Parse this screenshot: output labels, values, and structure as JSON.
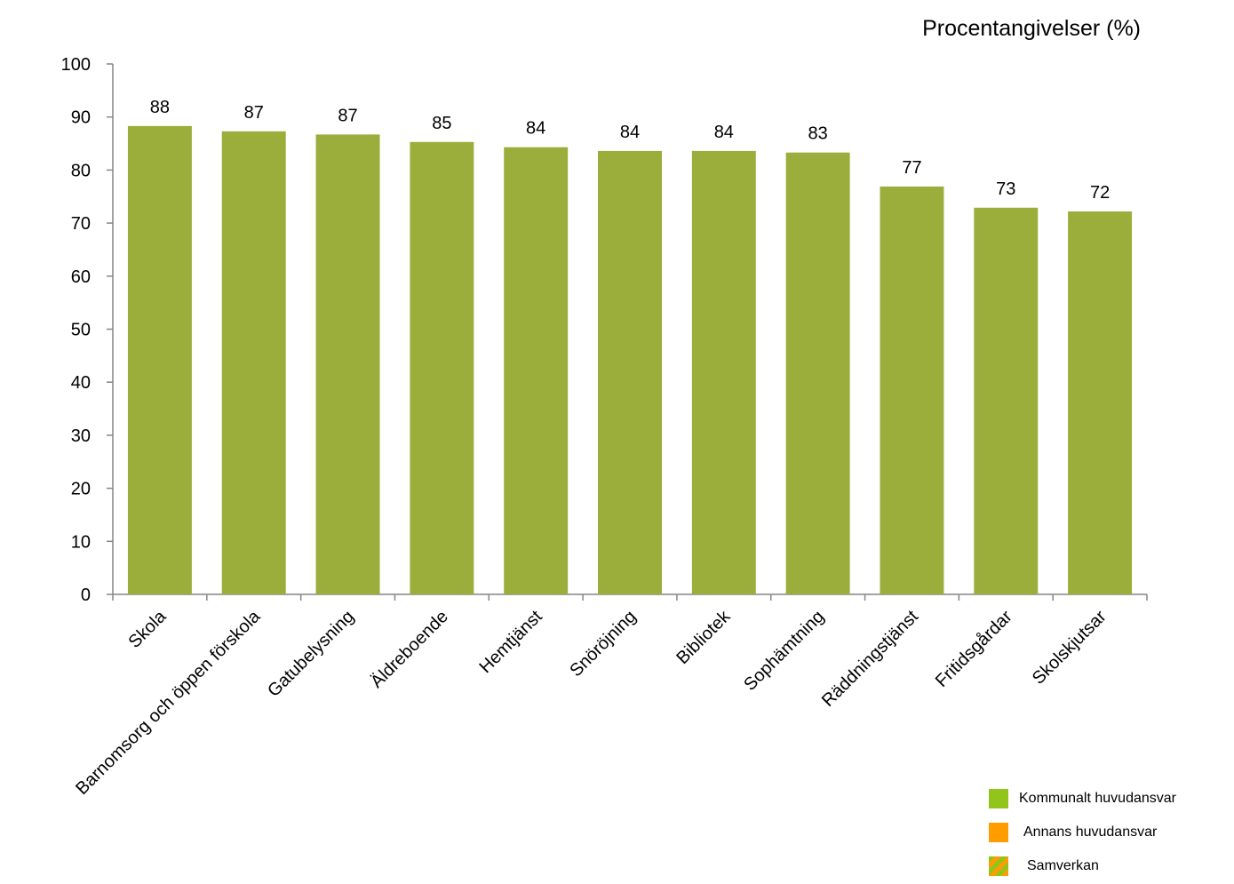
{
  "chart_data": {
    "type": "bar",
    "title": "Procentangivelser (%)",
    "xlabel": "",
    "ylabel": "",
    "ylim": [
      0,
      100
    ],
    "yticks": [
      0,
      10,
      20,
      30,
      40,
      50,
      60,
      70,
      80,
      90,
      100
    ],
    "grid": false,
    "categories": [
      "Skola",
      "Barnomsorg och öppen förskola",
      "Gatubelysning",
      "Äldreboende",
      "Hemtjänst",
      "Snöröjning",
      "Bibliotek",
      "Sophämtning",
      "Räddningstjänst",
      "Fritidsgårdar",
      "Skolskjutsar"
    ],
    "values": [
      88.3,
      87.3,
      86.7,
      85.3,
      84.3,
      83.6,
      83.6,
      83.3,
      76.9,
      72.9,
      72.2
    ],
    "data_labels": [
      "88",
      "87",
      "87",
      "85",
      "84",
      "84",
      "84",
      "83",
      "77",
      "73",
      "72"
    ],
    "bar_color": "#9bad3a",
    "legend_placement": "bottom-right",
    "legend": [
      {
        "label": "Kommunalt  huvudansvar",
        "color": "#92c51b",
        "pattern": "solid"
      },
      {
        "label": "Annans huvudansvar",
        "color": "#ff9c00",
        "pattern": "solid"
      },
      {
        "label": "Samverkan",
        "color": "#92c51b",
        "color2": "#ff9c00",
        "pattern": "striped"
      }
    ]
  }
}
